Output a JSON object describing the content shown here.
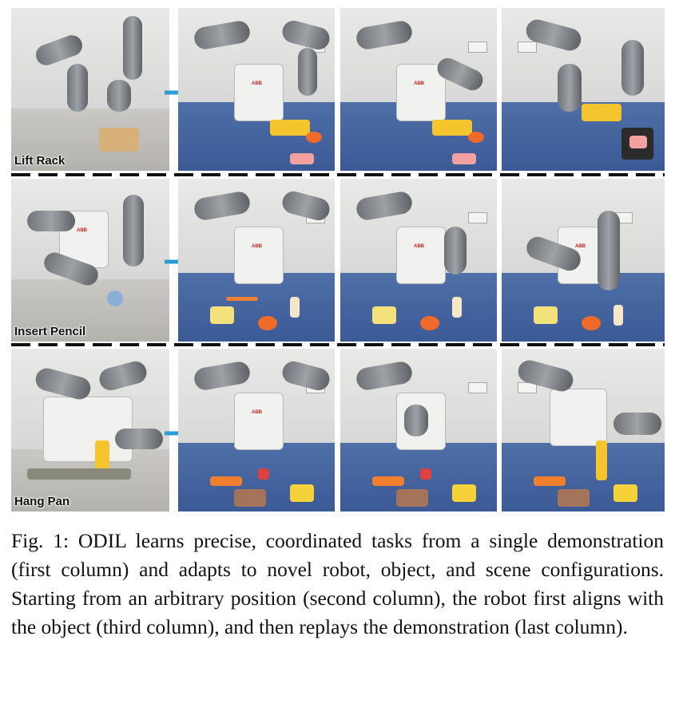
{
  "rows": [
    {
      "task_label": "Lift Rack"
    },
    {
      "task_label": "Insert Pencil"
    },
    {
      "task_label": "Hang Pan"
    }
  ],
  "caption": "Fig. 1: ODIL learns precise, coordinated tasks from a single demonstration (first column) and adapts to novel robot, object, and scene configurations. Starting from an arbitrary position (second column), the robot first aligns with the object (third column), and then replays the demonstration (last column).",
  "colors": {
    "arrow": "#2e9bd6",
    "table_cloth": "#44639d",
    "robot_grey": "#7d8185"
  },
  "robot_logo": "ABB"
}
